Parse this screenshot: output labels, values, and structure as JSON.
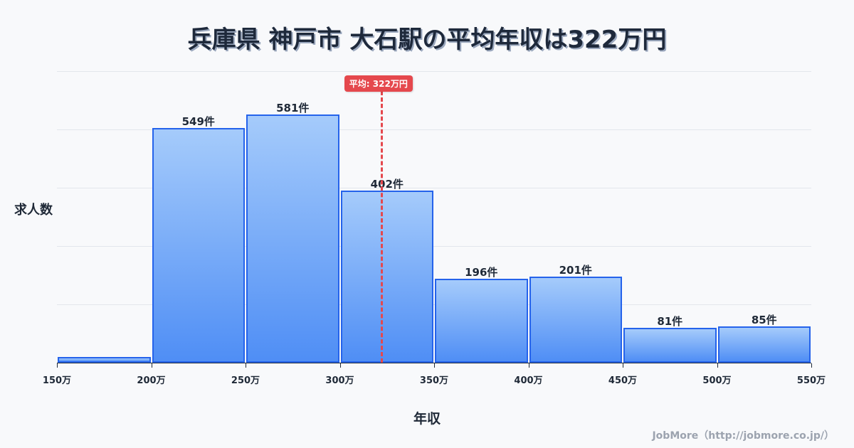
{
  "title": "兵庫県 神戸市 大石駅の平均年収は322万円",
  "axes": {
    "ylabel": "求人数",
    "xlabel": "年収"
  },
  "mean": {
    "label": "平均: 322万円",
    "value": 322,
    "color": "#e5484d"
  },
  "credit": "JobMore（http://jobmore.co.jp/）",
  "colors": {
    "bar_border": "#2563eb",
    "bar_top": "#a5cbfb",
    "bar_bottom": "#4f8ef5"
  },
  "ticks": [
    "150万",
    "200万",
    "250万",
    "300万",
    "350万",
    "400万",
    "450万",
    "500万",
    "550万"
  ],
  "bars": [
    {
      "range": "150万-200万",
      "count": 13,
      "label": ""
    },
    {
      "range": "200万-250万",
      "count": 549,
      "label": "549件"
    },
    {
      "range": "250万-300万",
      "count": 581,
      "label": "581件"
    },
    {
      "range": "300万-350万",
      "count": 402,
      "label": "402件"
    },
    {
      "range": "350万-400万",
      "count": 196,
      "label": "196件"
    },
    {
      "range": "400万-450万",
      "count": 201,
      "label": "201件"
    },
    {
      "range": "450万-500万",
      "count": 81,
      "label": "81件"
    },
    {
      "range": "500万-550万",
      "count": 85,
      "label": "85件"
    }
  ],
  "chart_data": {
    "type": "bar",
    "title": "兵庫県 神戸市 大石駅の平均年収は322万円",
    "xlabel": "年収",
    "ylabel": "求人数",
    "categories": [
      "150万-200万",
      "200万-250万",
      "250万-300万",
      "300万-350万",
      "350万-400万",
      "400万-450万",
      "450万-500万",
      "500万-550万"
    ],
    "values": [
      13,
      549,
      581,
      402,
      196,
      201,
      81,
      85
    ],
    "x_ticks": [
      "150万",
      "200万",
      "250万",
      "300万",
      "350万",
      "400万",
      "450万",
      "500万",
      "550万"
    ],
    "xlim": [
      150,
      550
    ],
    "ylim": [
      0,
      682
    ],
    "grid": "horizontal",
    "annotations": [
      {
        "type": "vline",
        "x": 322,
        "label": "平均: 322万円",
        "style": "dashed red"
      }
    ],
    "value_label_suffix": "件",
    "legend": "none"
  }
}
